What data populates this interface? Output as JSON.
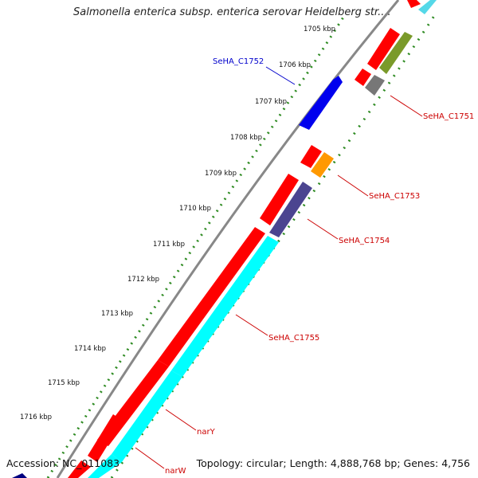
{
  "title": "Salmonella enterica subsp. enterica serovar Heidelberg str....",
  "footer": {
    "accession": "Accession: NC_011083",
    "summary": "Topology: circular; Length: 4,888,768 bp; Genes: 4,756"
  },
  "ruler": {
    "ticks": [
      "1705 kbp",
      "1706 kbp",
      "1707 kbp",
      "1708 kbp",
      "1709 kbp",
      "1710 kbp",
      "1711 kbp",
      "1712 kbp",
      "1713 kbp",
      "1714 kbp",
      "1715 kbp",
      "1716 kbp"
    ]
  },
  "genes": [
    {
      "id": "SeHA_C1752",
      "name": "SeHA_C1752",
      "color": "#0000ff",
      "labeled": true
    },
    {
      "id": "SeHA_C1751",
      "name": "SeHA_C1751",
      "color": "#ff0000",
      "labeled": true
    },
    {
      "id": "SeHA_C1753",
      "name": "SeHA_C1753",
      "color": "#ff0000",
      "labeled": true
    },
    {
      "id": "SeHA_C1754",
      "name": "SeHA_C1754",
      "color": "#ff0000",
      "labeled": true
    },
    {
      "id": "SeHA_C1755",
      "name": "SeHA_C1755",
      "color": "#ff0000",
      "labeled": true
    },
    {
      "id": "narY",
      "name": "narY",
      "color": "#ff0000",
      "labeled": true
    },
    {
      "id": "narW",
      "name": "narW",
      "color": "#ff0000",
      "labeled": true
    }
  ],
  "colors": {
    "cds_forward": "#ff0000",
    "cds_blue": "#0000ee",
    "rna_cyan": "#00ffff",
    "orange": "#ff9900",
    "olive": "#7a9a2a",
    "slate": "#4b4590",
    "gray": "#777777",
    "backbone": "#888888",
    "ruler_dots": "#2e8b22"
  }
}
